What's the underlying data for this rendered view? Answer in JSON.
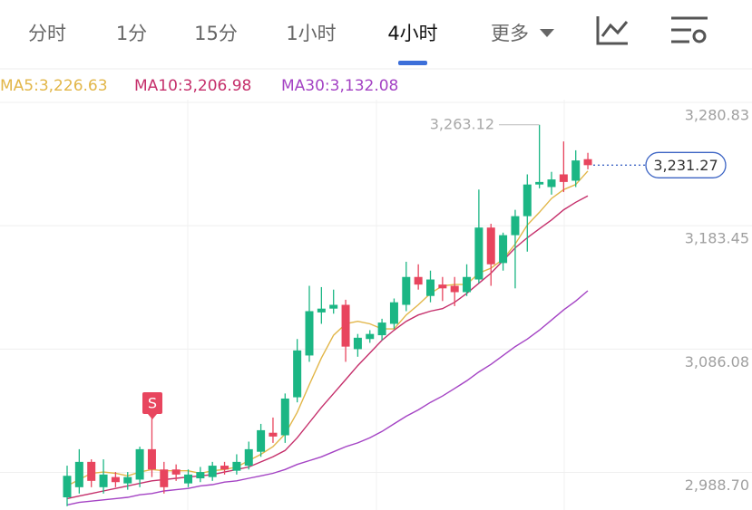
{
  "tabs": [
    "分时",
    "1分",
    "15分",
    "1小时",
    "4小时",
    "更多"
  ],
  "active_tab": 4,
  "chart_data": {
    "type": "candlestick",
    "up_color": "#1bb684",
    "down_color": "#e8455e",
    "ylim": [
      2959,
      3283
    ],
    "yticks": [
      {
        "value": 3280.83,
        "label": "3,280.83"
      },
      {
        "value": 3183.45,
        "label": "3,183.45"
      },
      {
        "value": 3086.08,
        "label": "3,086.08"
      },
      {
        "value": 2988.7,
        "label": "2,988.70"
      }
    ],
    "grid": true,
    "open": [
      2969,
      2977,
      2997,
      2977,
      2985,
      2980,
      2983,
      3007,
      2991,
      2991,
      2980,
      2984,
      2985,
      2994,
      2990,
      2994,
      3005,
      3020,
      3018,
      3048,
      3081,
      3115,
      3118,
      3121,
      3086,
      3094,
      3097,
      3106,
      3121,
      3143,
      3128,
      3137,
      3136,
      3131,
      3141,
      3182,
      3154,
      3176,
      3191,
      3216,
      3214,
      3224,
      3219,
      3236
    ],
    "high": [
      2994,
      3007,
      2999,
      2999,
      2989,
      2989,
      3009,
      3032,
      2997,
      2995,
      2991,
      2993,
      2997,
      2997,
      3003,
      3013,
      3027,
      3032,
      3051,
      3094,
      3136,
      3135,
      3133,
      3125,
      3098,
      3101,
      3110,
      3126,
      3155,
      3153,
      3148,
      3143,
      3143,
      3153,
      3212,
      3185,
      3178,
      3196,
      3224,
      3263.12,
      3226,
      3250,
      3243,
      3241
    ],
    "low": [
      2962,
      2972,
      2977,
      2972,
      2977,
      2975,
      2977,
      2985,
      2972,
      2982,
      2977,
      2981,
      2982,
      2987,
      2987,
      2991,
      3001,
      3012,
      3012,
      3044,
      3076,
      3106,
      3114,
      3076,
      3080,
      3091,
      3093,
      3102,
      3116,
      3133,
      3123,
      3124,
      3120,
      3128,
      3138,
      3136,
      3148,
      3134,
      3163,
      3213,
      3208,
      3210,
      3214,
      3228
    ],
    "close": [
      2986,
      2997,
      2982,
      2987,
      2981,
      2985,
      3007,
      2991,
      2977,
      2987,
      2987,
      2989,
      2994,
      2991,
      2997,
      3007,
      3022,
      3017,
      3047,
      3085,
      3116,
      3118,
      3121,
      3088,
      3095,
      3098,
      3107,
      3123,
      3143,
      3137,
      3141,
      3134,
      3131,
      3143,
      3182,
      3153,
      3176,
      3191,
      3216,
      3218,
      3220,
      3218,
      3235,
      3231.27
    ],
    "series": [
      {
        "name": "MA5:3,226.63",
        "color": "#e2b648",
        "values": [
          2978,
          2983,
          2988,
          2989,
          2988,
          2986,
          2989,
          2991,
          2990,
          2990,
          2990,
          2988,
          2990,
          2991,
          2993,
          2998,
          3003,
          3009,
          3019,
          3036,
          3058,
          3079,
          3097,
          3106,
          3108,
          3106,
          3102,
          3102,
          3113,
          3121,
          3130,
          3136,
          3137,
          3137,
          3146,
          3150,
          3157,
          3169,
          3184,
          3194,
          3205,
          3212,
          3216,
          3226.63
        ]
      },
      {
        "name": "MA10:3,206.98",
        "color": "#c52f6b",
        "values": [
          2968,
          2970,
          2972,
          2974,
          2976,
          2978,
          2980,
          2982,
          2983,
          2984,
          2985,
          2986,
          2987,
          2989,
          2991,
          2993,
          2997,
          3001,
          3006,
          3016,
          3028,
          3040,
          3051,
          3062,
          3073,
          3083,
          3093,
          3101,
          3108,
          3113,
          3116,
          3118,
          3123,
          3130,
          3138,
          3146,
          3156,
          3166,
          3174,
          3181,
          3188,
          3196,
          3202,
          3206.98
        ]
      },
      {
        "name": "MA30:3,132.08",
        "color": "#a443c4",
        "values": [
          2963,
          2965,
          2966,
          2967,
          2968,
          2969,
          2971,
          2972,
          2974,
          2975,
          2976,
          2978,
          2979,
          2981,
          2982,
          2984,
          2986,
          2988,
          2991,
          2995,
          2998,
          3001,
          3005,
          3009,
          3012,
          3016,
          3021,
          3027,
          3033,
          3038,
          3044,
          3049,
          3055,
          3061,
          3068,
          3074,
          3081,
          3088,
          3094,
          3101,
          3109,
          3117,
          3124,
          3132.08
        ]
      }
    ],
    "max_label": {
      "value": 3263.12,
      "label": "3,263.12"
    },
    "last_price": {
      "value": 3231.27,
      "label": "3,231.27"
    },
    "signal": "S"
  }
}
